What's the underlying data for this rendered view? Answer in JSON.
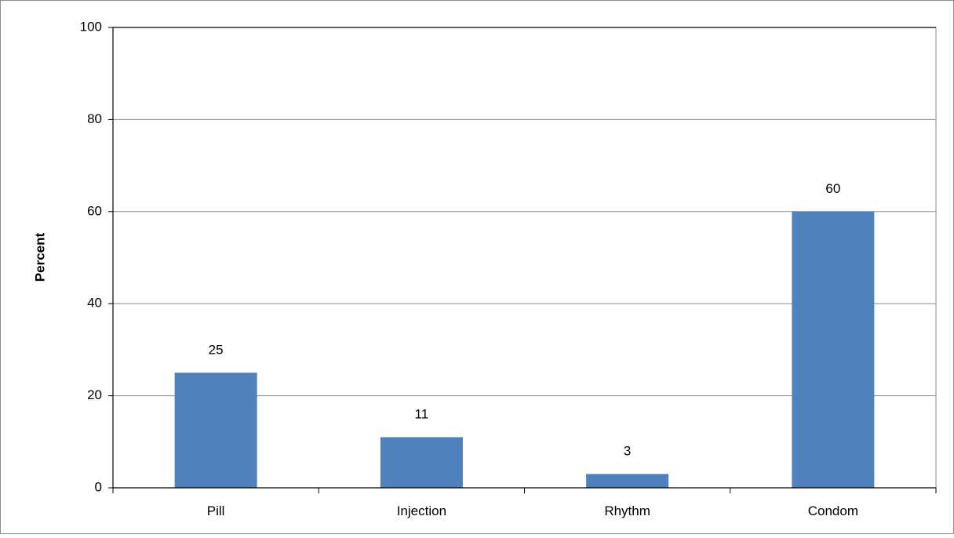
{
  "chart_data": {
    "type": "bar",
    "title": "",
    "xlabel": "",
    "ylabel": "Percent",
    "categories": [
      "Pill",
      "Injection",
      "Rhythm",
      "Condom"
    ],
    "series": [
      {
        "values": [
          25,
          11,
          3,
          60
        ]
      }
    ],
    "value_labels": [
      "25",
      "11",
      "3",
      "60"
    ],
    "ylim": [
      0,
      100
    ],
    "yticks": [
      0,
      20,
      40,
      60,
      80,
      100
    ],
    "grid": true,
    "legend": "none",
    "colors": {
      "bar": "#4F81BD",
      "grid": "#8C8C8C",
      "axis": "#000000",
      "frame": "#8C8C8C",
      "text": "#000000"
    }
  }
}
